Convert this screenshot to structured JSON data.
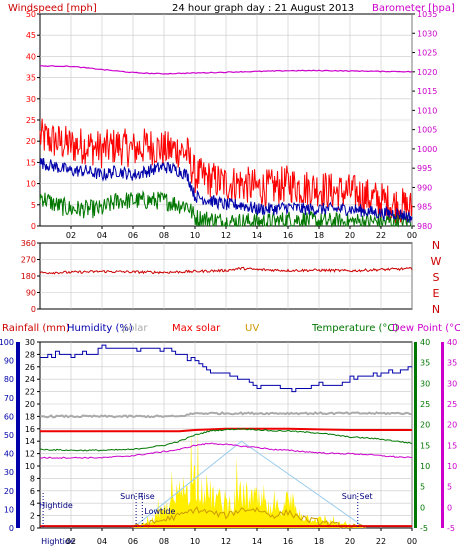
{
  "title": "24 hour graph day : 21 August 2013",
  "colors": {
    "wind_gust": "#ff0000",
    "wind_avg": "#0000aa",
    "wind_low": "#007700",
    "barometer": "#cc00cc",
    "direction": "#cc0000",
    "humidity": "#0000aa",
    "solar_polar": "#aaaaaa",
    "max_solar": "#ee0000",
    "uv": "#cc9900",
    "temperature": "#007700",
    "dew_point": "#cc00cc",
    "solar_fill": "#ffee00",
    "axis": "#000000",
    "grid": "#c8c8c8"
  },
  "chart_data": [
    {
      "type": "line",
      "name": "wind-barometer",
      "left_label": "Windspeed [mph]",
      "right_label": "Barometer [hpa]",
      "left_ticks": [
        0,
        5,
        10,
        15,
        20,
        25,
        30,
        35,
        40,
        45,
        50
      ],
      "right_ticks": [
        980,
        985,
        990,
        995,
        1000,
        1005,
        1010,
        1015,
        1020,
        1025,
        1030,
        1035
      ],
      "left_range": [
        0,
        50
      ],
      "right_range": [
        980,
        1035
      ],
      "x_ticks": [
        "02",
        "04",
        "06",
        "08",
        "10",
        "12",
        "14",
        "16",
        "18",
        "20",
        "22",
        "00"
      ],
      "x_range": [
        0,
        24
      ],
      "series": [
        {
          "key": "gust",
          "axis": "left",
          "x": [
            0,
            1,
            2,
            3,
            4,
            5,
            6,
            7,
            8,
            9,
            9.5,
            10,
            11,
            12,
            13,
            14,
            15,
            16,
            17,
            18,
            19,
            20,
            21,
            22,
            23,
            24
          ],
          "values": [
            21,
            20,
            19,
            19,
            18,
            19,
            18,
            19,
            18,
            18,
            17,
            12,
            11,
            10,
            10,
            9,
            9,
            10,
            9,
            9,
            8,
            8,
            7,
            6,
            5,
            4
          ]
        },
        {
          "key": "avg",
          "axis": "left",
          "x": [
            0,
            1,
            2,
            3,
            4,
            5,
            6,
            7,
            8,
            9,
            9.5,
            10,
            11,
            12,
            13,
            14,
            15,
            16,
            17,
            18,
            19,
            20,
            21,
            22,
            23,
            24
          ],
          "values": [
            15,
            14,
            13,
            13,
            12,
            13,
            12,
            13,
            14,
            13,
            12,
            7,
            6,
            5,
            5,
            4,
            4,
            4.5,
            4,
            4,
            4,
            4,
            3.5,
            3,
            3,
            2
          ]
        },
        {
          "key": "low",
          "axis": "left",
          "x": [
            0,
            1,
            2,
            3,
            4,
            5,
            6,
            7,
            8,
            9,
            9.5,
            10,
            11,
            12,
            13,
            14,
            15,
            16,
            17,
            18,
            19,
            20,
            21,
            22,
            23,
            24
          ],
          "values": [
            7,
            5,
            4,
            4,
            4,
            6,
            6,
            6,
            6,
            5,
            5,
            2,
            1.5,
            1,
            1,
            1,
            1,
            1.5,
            1.5,
            1,
            1,
            1,
            1,
            1,
            1,
            1
          ]
        },
        {
          "key": "barometer",
          "axis": "right",
          "x": [
            0,
            1,
            2,
            3,
            4,
            5,
            6,
            7,
            8,
            9,
            10,
            11,
            12,
            13,
            14,
            15,
            16,
            17,
            18,
            19,
            20,
            21,
            22,
            23,
            24
          ],
          "values": [
            1021.5,
            1021.5,
            1021.4,
            1021.0,
            1020.6,
            1020.2,
            1019.8,
            1019.6,
            1019.5,
            1019.6,
            1019.7,
            1019.8,
            1019.9,
            1020.0,
            1020.1,
            1020.2,
            1020.3,
            1020.3,
            1020.3,
            1020.3,
            1020.2,
            1020.2,
            1020.1,
            1020.1,
            1020.0
          ]
        }
      ]
    },
    {
      "type": "line",
      "name": "wind-direction",
      "left_ticks": [
        0,
        90,
        180,
        270,
        360
      ],
      "left_range": [
        0,
        360
      ],
      "right_labels": [
        "N",
        "W",
        "S",
        "E",
        "N"
      ],
      "series": [
        {
          "key": "direction",
          "x": [
            0,
            2,
            4,
            6,
            8,
            10,
            12,
            13,
            14,
            16,
            18,
            20,
            22,
            24
          ],
          "values": [
            198,
            200,
            205,
            202,
            200,
            205,
            210,
            222,
            215,
            210,
            212,
            208,
            215,
            220
          ]
        }
      ]
    },
    {
      "type": "line",
      "name": "rain-humidity-temperature",
      "headers": [
        "Rainfall (mm)",
        "Humidity (%)",
        "polar",
        "Max solar",
        "UV",
        "Temperature (°C)",
        "Dew Point (°C)"
      ],
      "humidity_ticks": [
        0,
        10,
        20,
        30,
        40,
        50,
        60,
        70,
        80,
        90,
        100
      ],
      "rain_ticks": [
        0,
        2,
        4,
        6,
        8,
        10,
        12,
        14,
        16,
        18,
        20,
        22,
        24,
        26,
        28,
        30
      ],
      "temp_ticks": [
        -5,
        0,
        5,
        10,
        15,
        20,
        25,
        30,
        35,
        40
      ],
      "x_ticks": [
        "Hightide",
        "02",
        "04",
        "06",
        "08",
        "10",
        "12",
        "14",
        "16",
        "18",
        "20",
        "22",
        "00"
      ],
      "x_range": [
        0,
        24
      ],
      "annotations": [
        {
          "label": "Hightide",
          "x": 0.2
        },
        {
          "label": "Sun Rise",
          "x": 6.2
        },
        {
          "label": "Lowtide",
          "x": 6.6
        },
        {
          "label": "Sun Set",
          "x": 20.5
        }
      ],
      "series": [
        {
          "key": "humidity",
          "axis": "rain",
          "x": [
            0,
            1,
            2,
            3,
            4,
            5,
            6,
            7,
            8,
            9,
            10,
            11,
            12,
            13,
            14,
            15,
            16,
            17,
            18,
            19,
            20,
            21,
            22,
            23,
            24
          ],
          "values": [
            27.5,
            28,
            28,
            28,
            29,
            29,
            29,
            29,
            29,
            28,
            27,
            25,
            24.5,
            24,
            23,
            23,
            22.5,
            22.5,
            23,
            23,
            24,
            24.5,
            25,
            25.5,
            26
          ]
        },
        {
          "key": "polar",
          "axis": "rain",
          "x": [
            0,
            4,
            8,
            9,
            10,
            12,
            16,
            20,
            24
          ],
          "values": [
            18,
            18,
            18,
            18,
            18.5,
            18.5,
            18.5,
            18.5,
            18.5
          ]
        },
        {
          "key": "max_solar",
          "axis": "rain",
          "x": [
            0,
            4,
            8,
            9,
            10,
            12,
            16,
            20,
            24
          ],
          "values": [
            15.6,
            15.6,
            15.6,
            15.6,
            15.8,
            16,
            16,
            15.8,
            15.8
          ]
        },
        {
          "key": "temperature",
          "axis": "temp",
          "x": [
            0,
            2,
            4,
            6,
            7,
            8,
            9,
            10,
            11,
            12,
            13,
            14,
            15,
            16,
            17,
            18,
            19,
            20,
            21,
            22,
            23,
            24
          ],
          "values": [
            14,
            13.8,
            13.8,
            14,
            14.5,
            15,
            16,
            17.5,
            18.5,
            18.8,
            19,
            18.8,
            18.5,
            18.5,
            18.2,
            18,
            17.5,
            17,
            16.8,
            16.5,
            16,
            15.5
          ]
        },
        {
          "key": "dewpoint",
          "axis": "temp",
          "x": [
            0,
            2,
            4,
            6,
            7,
            8,
            9,
            10,
            11,
            12,
            13,
            14,
            15,
            16,
            17,
            18,
            19,
            20,
            21,
            22,
            23,
            24
          ],
          "values": [
            12,
            12,
            12,
            12.5,
            13,
            13.5,
            14,
            15,
            15.5,
            15.2,
            14.8,
            14.5,
            14,
            13.8,
            13.5,
            13.2,
            13,
            13,
            12.8,
            12.5,
            12.2,
            12
          ]
        },
        {
          "key": "solar",
          "axis": "rain",
          "x": [
            6,
            7,
            8,
            9,
            10,
            11,
            12,
            13,
            14,
            15,
            16,
            17,
            18,
            19,
            20,
            21
          ],
          "values": [
            0,
            1,
            3,
            6,
            9,
            6,
            4,
            6,
            5,
            3,
            5,
            2,
            1.5,
            1,
            0.5,
            0
          ]
        },
        {
          "key": "max_solar_envelope",
          "axis": "rain",
          "x": [
            6,
            13,
            21
          ],
          "values": [
            0,
            14,
            0
          ]
        },
        {
          "key": "uv",
          "axis": "rain",
          "x": [
            6,
            9,
            10,
            11,
            12,
            13,
            14,
            15,
            16,
            17,
            18,
            19,
            20,
            21
          ],
          "values": [
            0,
            2,
            3,
            2.5,
            2,
            3,
            3,
            2,
            2.5,
            1.5,
            1,
            0.5,
            0.2,
            0
          ]
        },
        {
          "key": "rainfall",
          "axis": "rain",
          "x": [
            0,
            24
          ],
          "values": [
            0.3,
            0.3
          ]
        }
      ]
    }
  ]
}
